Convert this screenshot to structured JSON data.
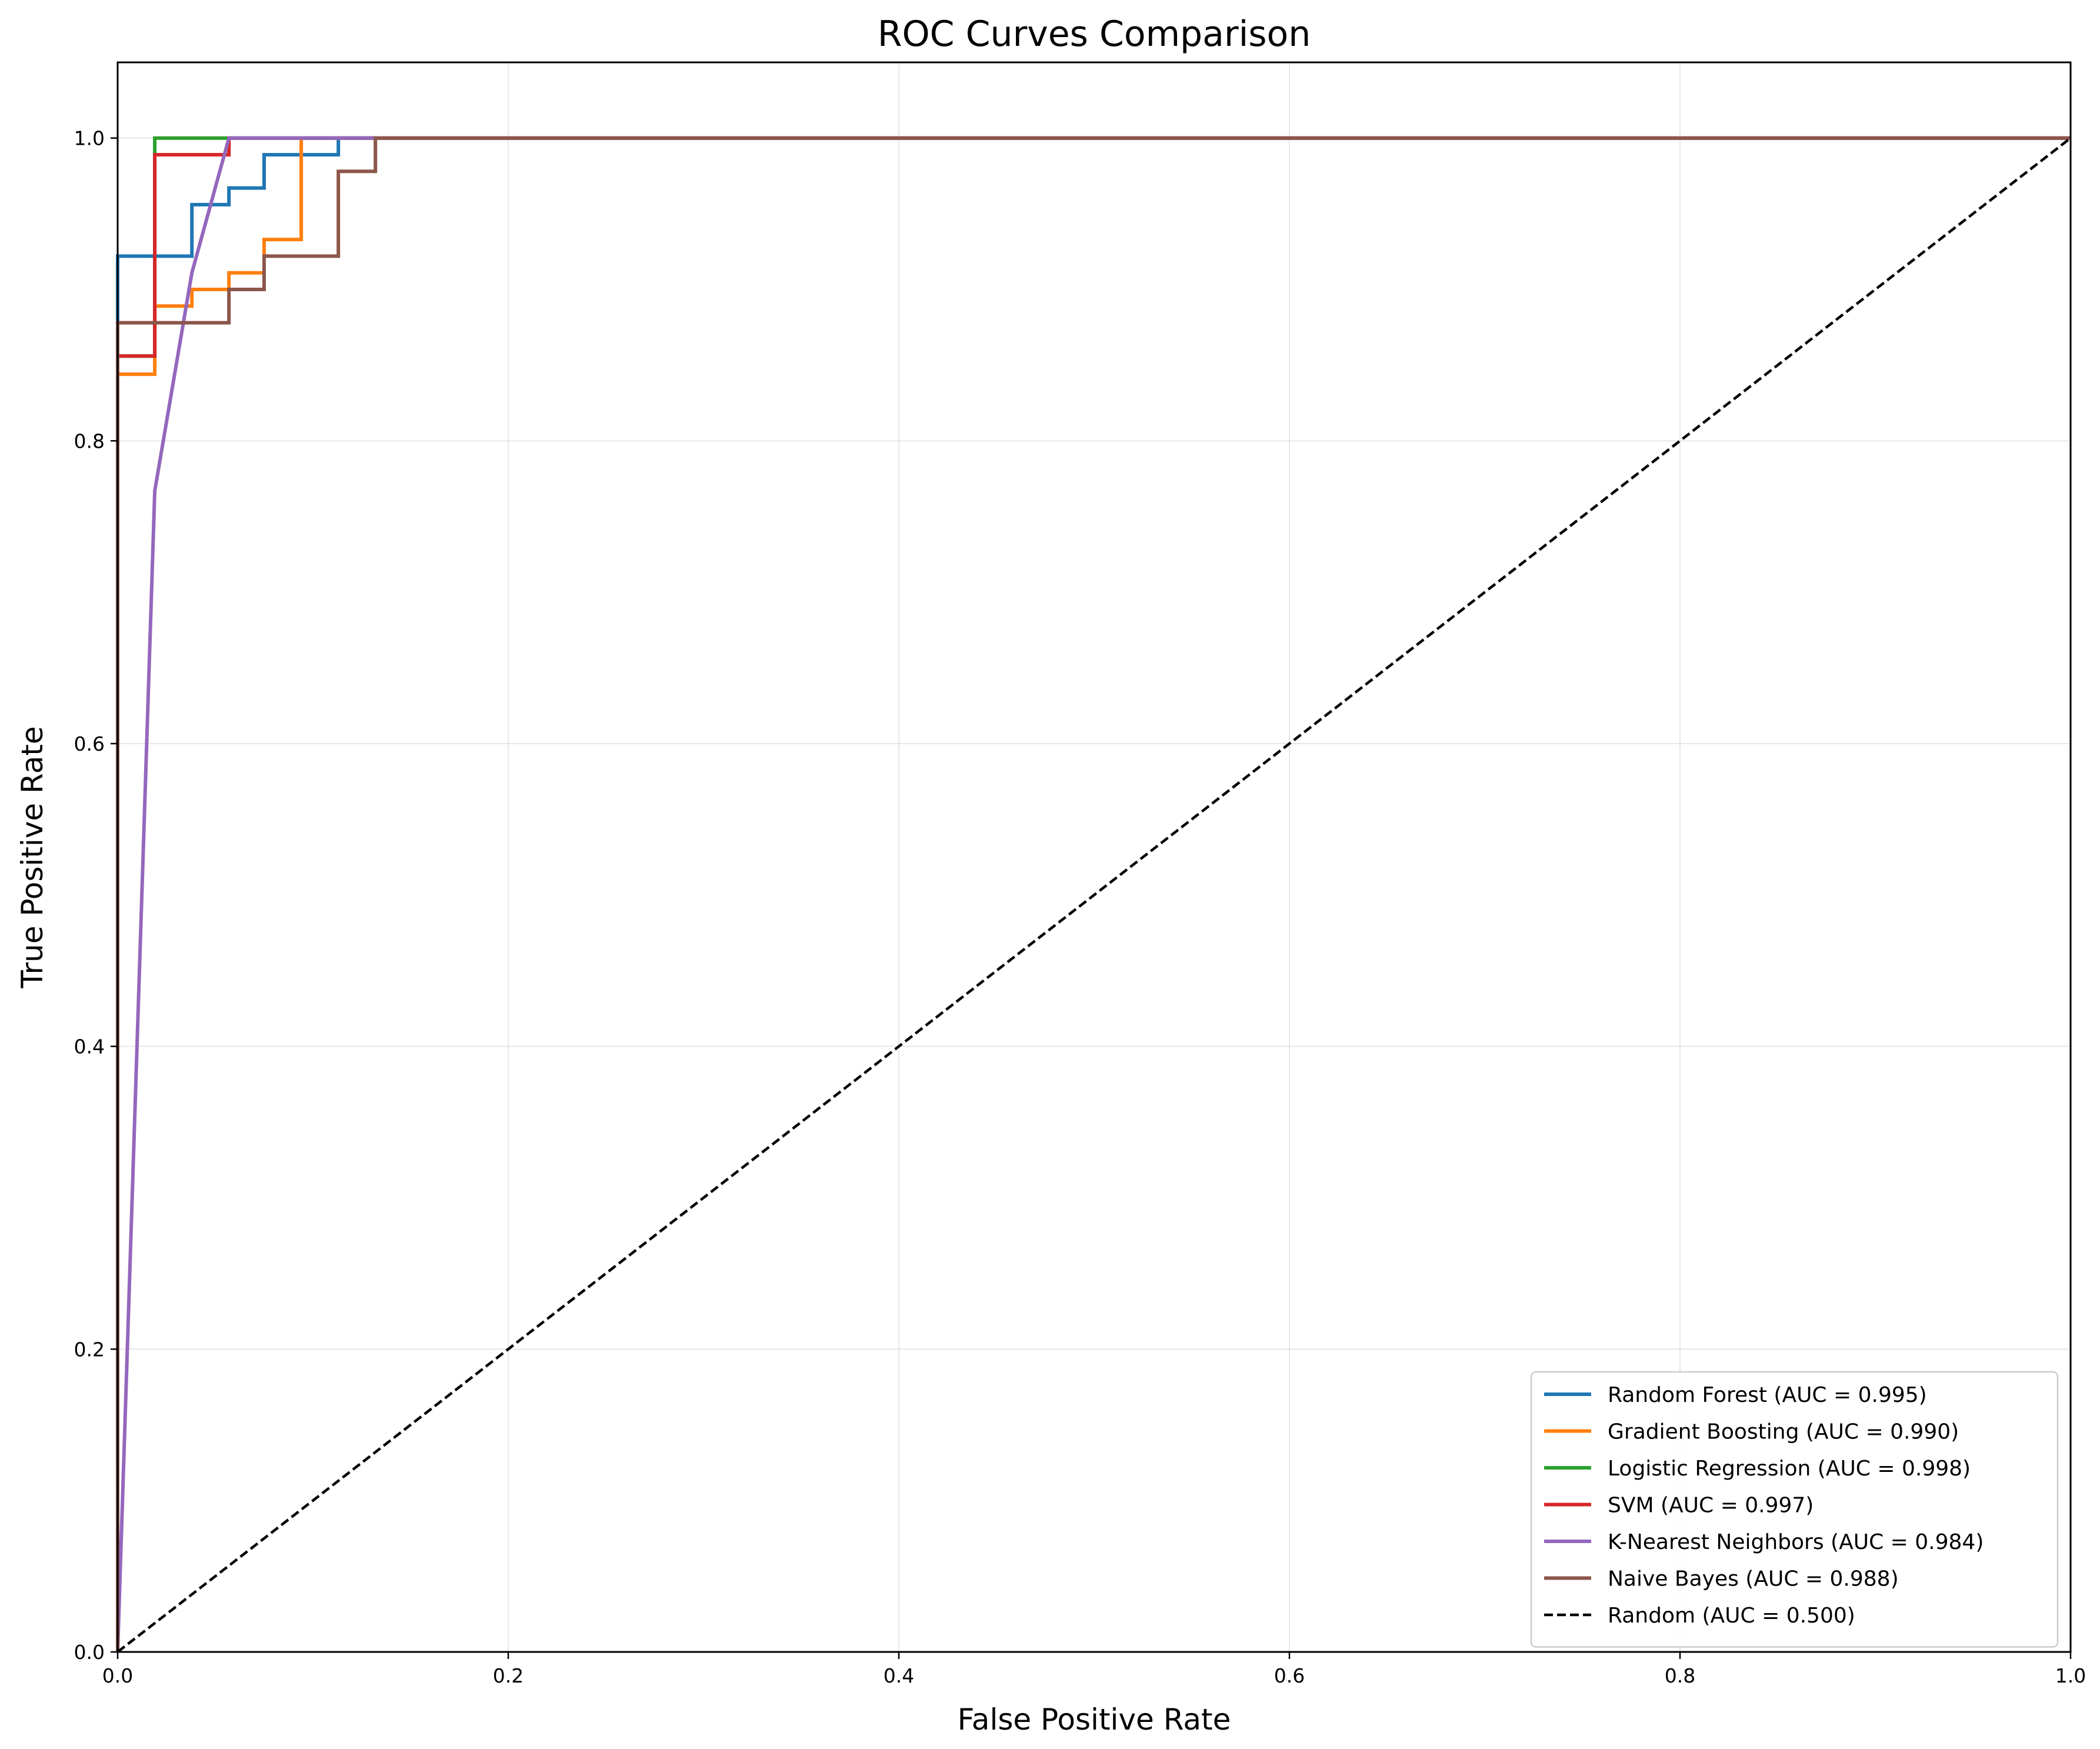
{
  "chart_data": {
    "type": "line",
    "title": "ROC Curves Comparison",
    "xlabel": "False Positive Rate",
    "ylabel": "True Positive Rate",
    "xlim": [
      0.0,
      1.0
    ],
    "ylim": [
      0.0,
      1.05
    ],
    "x_ticks": [
      "0.0",
      "0.2",
      "0.4",
      "0.6",
      "0.8",
      "1.0"
    ],
    "y_ticks": [
      "0.0",
      "0.2",
      "0.4",
      "0.6",
      "0.8",
      "1.0"
    ],
    "grid": true,
    "legend_position": "lower-right",
    "series": [
      {
        "name": "Random Forest (AUC = 0.995)",
        "color": "#1f77b4",
        "style": "solid",
        "points": [
          [
            0,
            0
          ],
          [
            0,
            0.922
          ],
          [
            0.038,
            0.922
          ],
          [
            0.038,
            0.956
          ],
          [
            0.057,
            0.956
          ],
          [
            0.057,
            0.967
          ],
          [
            0.075,
            0.967
          ],
          [
            0.075,
            0.989
          ],
          [
            0.113,
            0.989
          ],
          [
            0.113,
            1.0
          ],
          [
            1.0,
            1.0
          ]
        ]
      },
      {
        "name": "Gradient Boosting (AUC = 0.990)",
        "color": "#ff7f0e",
        "style": "solid",
        "points": [
          [
            0,
            0
          ],
          [
            0,
            0.844
          ],
          [
            0.019,
            0.844
          ],
          [
            0.019,
            0.889
          ],
          [
            0.038,
            0.889
          ],
          [
            0.038,
            0.9
          ],
          [
            0.057,
            0.9
          ],
          [
            0.057,
            0.911
          ],
          [
            0.075,
            0.911
          ],
          [
            0.075,
            0.933
          ],
          [
            0.094,
            0.933
          ],
          [
            0.094,
            1.0
          ],
          [
            1.0,
            1.0
          ]
        ]
      },
      {
        "name": "Logistic Regression (AUC = 0.998)",
        "color": "#2ca02c",
        "style": "solid",
        "points": [
          [
            0,
            0
          ],
          [
            0,
            0.856
          ],
          [
            0.019,
            0.856
          ],
          [
            0.019,
            1.0
          ],
          [
            1.0,
            1.0
          ]
        ]
      },
      {
        "name": "SVM (AUC = 0.997)",
        "color": "#d62728",
        "style": "solid",
        "points": [
          [
            0,
            0
          ],
          [
            0,
            0.856
          ],
          [
            0.019,
            0.856
          ],
          [
            0.019,
            0.989
          ],
          [
            0.057,
            0.989
          ],
          [
            0.057,
            1.0
          ],
          [
            1.0,
            1.0
          ]
        ]
      },
      {
        "name": "K-Nearest Neighbors (AUC = 0.984)",
        "color": "#9467bd",
        "style": "solid",
        "points": [
          [
            0,
            0
          ],
          [
            0.019,
            0.767
          ],
          [
            0.038,
            0.911
          ],
          [
            0.057,
            1.0
          ],
          [
            1.0,
            1.0
          ]
        ]
      },
      {
        "name": "Naive Bayes (AUC = 0.988)",
        "color": "#8c564b",
        "style": "solid",
        "points": [
          [
            0,
            0
          ],
          [
            0,
            0.878
          ],
          [
            0.057,
            0.878
          ],
          [
            0.057,
            0.9
          ],
          [
            0.075,
            0.9
          ],
          [
            0.075,
            0.922
          ],
          [
            0.113,
            0.922
          ],
          [
            0.113,
            0.978
          ],
          [
            0.132,
            0.978
          ],
          [
            0.132,
            1.0
          ],
          [
            1.0,
            1.0
          ]
        ]
      },
      {
        "name": "Random (AUC = 0.500)",
        "color": "#000000",
        "style": "dashed",
        "points": [
          [
            0,
            0
          ],
          [
            1,
            1
          ]
        ]
      }
    ]
  }
}
